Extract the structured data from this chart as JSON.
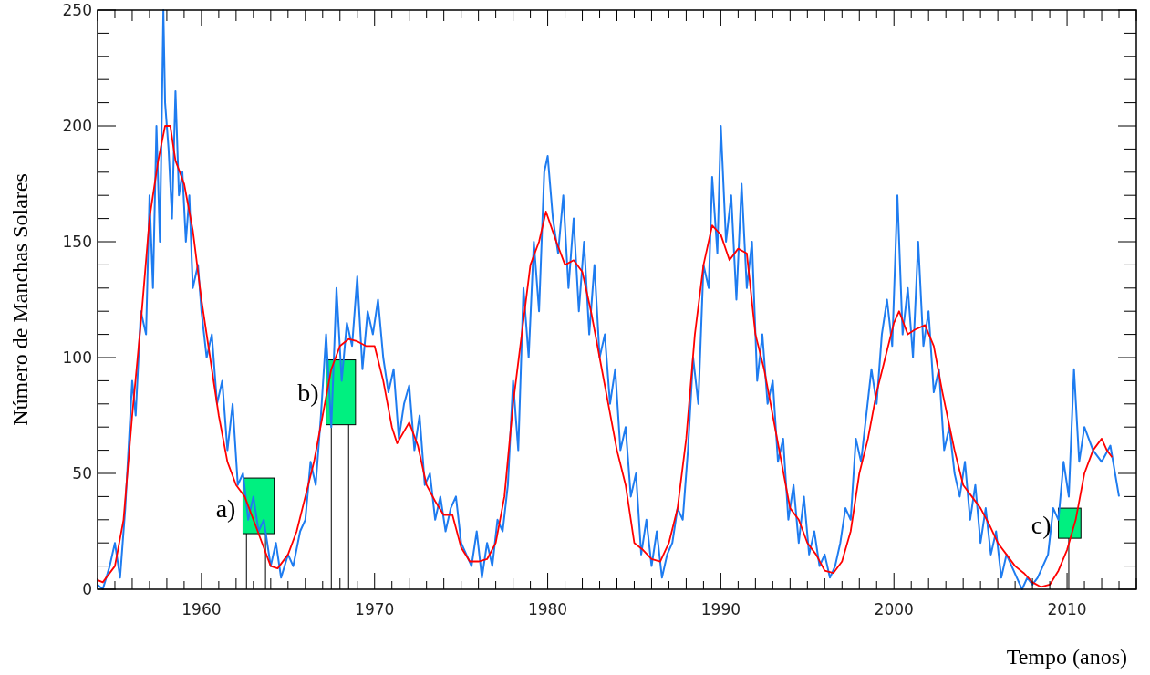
{
  "chart_data": {
    "type": "line",
    "xlabel": "Tempo (anos)",
    "ylabel": "Número de Manchas Solares",
    "xlim": [
      1954,
      2014
    ],
    "ylim": [
      0,
      250
    ],
    "xticks": [
      1960,
      1970,
      1980,
      1990,
      2000,
      2010
    ],
    "yticks": [
      0,
      50,
      100,
      150,
      200,
      250
    ],
    "grid": false,
    "marker": "none",
    "line_style": "solid",
    "series": [
      {
        "color": "#1e7cf0",
        "x": [
          1954,
          1954.3,
          1954.7,
          1955,
          1955.3,
          1955.6,
          1956,
          1956.2,
          1956.5,
          1956.8,
          1957,
          1957.2,
          1957.4,
          1957.6,
          1957.8,
          1957.9,
          1958.1,
          1958.3,
          1958.5,
          1958.7,
          1958.9,
          1959.1,
          1959.3,
          1959.5,
          1959.8,
          1960,
          1960.3,
          1960.6,
          1960.9,
          1961.2,
          1961.5,
          1961.8,
          1962.1,
          1962.4,
          1962.7,
          1963,
          1963.3,
          1963.6,
          1964,
          1964.3,
          1964.6,
          1965,
          1965.3,
          1965.7,
          1966,
          1966.3,
          1966.6,
          1966.9,
          1967.2,
          1967.5,
          1967.8,
          1968.1,
          1968.4,
          1968.7,
          1969,
          1969.3,
          1969.6,
          1969.9,
          1970.2,
          1970.5,
          1970.8,
          1971.1,
          1971.4,
          1971.7,
          1972,
          1972.3,
          1972.6,
          1972.9,
          1973.2,
          1973.5,
          1973.8,
          1974.1,
          1974.4,
          1974.7,
          1975,
          1975.3,
          1975.6,
          1975.9,
          1976.2,
          1976.5,
          1976.8,
          1977.1,
          1977.4,
          1977.7,
          1978,
          1978.3,
          1978.6,
          1978.9,
          1979.2,
          1979.5,
          1979.8,
          1980,
          1980.3,
          1980.6,
          1980.9,
          1981.2,
          1981.5,
          1981.8,
          1982.1,
          1982.4,
          1982.7,
          1983,
          1983.3,
          1983.6,
          1983.9,
          1984.2,
          1984.5,
          1984.8,
          1985.1,
          1985.4,
          1985.7,
          1986,
          1986.3,
          1986.6,
          1986.9,
          1987.2,
          1987.5,
          1987.8,
          1988.1,
          1988.4,
          1988.7,
          1989,
          1989.3,
          1989.5,
          1989.8,
          1990,
          1990.3,
          1990.6,
          1990.9,
          1991.2,
          1991.5,
          1991.8,
          1992.1,
          1992.4,
          1992.7,
          1993,
          1993.3,
          1993.6,
          1993.9,
          1994.2,
          1994.5,
          1994.8,
          1995.1,
          1995.4,
          1995.7,
          1996,
          1996.3,
          1996.6,
          1996.9,
          1997.2,
          1997.5,
          1997.8,
          1998.1,
          1998.4,
          1998.7,
          1999,
          1999.3,
          1999.6,
          1999.9,
          2000.2,
          2000.5,
          2000.8,
          2001.1,
          2001.4,
          2001.7,
          2002,
          2002.3,
          2002.6,
          2002.9,
          2003.2,
          2003.5,
          2003.8,
          2004.1,
          2004.4,
          2004.7,
          2005,
          2005.3,
          2005.6,
          2005.9,
          2006.2,
          2006.5,
          2006.8,
          2007.1,
          2007.4,
          2007.7,
          2008,
          2008.3,
          2008.6,
          2008.9,
          2009.2,
          2009.5,
          2009.8,
          2010.1,
          2010.4,
          2010.7,
          2011,
          2011.5,
          2012,
          2012.5,
          2013
        ],
        "values": [
          2,
          0,
          10,
          20,
          5,
          35,
          90,
          75,
          120,
          110,
          170,
          130,
          200,
          150,
          250,
          210,
          190,
          160,
          215,
          170,
          180,
          150,
          170,
          130,
          140,
          120,
          100,
          110,
          80,
          90,
          60,
          80,
          45,
          50,
          30,
          40,
          25,
          30,
          10,
          20,
          5,
          15,
          10,
          25,
          30,
          55,
          45,
          75,
          110,
          70,
          130,
          90,
          115,
          105,
          135,
          95,
          120,
          110,
          125,
          100,
          85,
          95,
          65,
          80,
          88,
          60,
          75,
          45,
          50,
          30,
          40,
          25,
          35,
          40,
          20,
          15,
          10,
          25,
          5,
          20,
          10,
          30,
          25,
          45,
          90,
          60,
          130,
          100,
          150,
          120,
          180,
          187,
          160,
          145,
          170,
          130,
          160,
          120,
          150,
          110,
          140,
          100,
          110,
          80,
          95,
          60,
          70,
          40,
          50,
          15,
          30,
          10,
          25,
          5,
          15,
          20,
          35,
          30,
          60,
          100,
          80,
          140,
          130,
          178,
          145,
          200,
          150,
          170,
          125,
          175,
          130,
          150,
          90,
          110,
          80,
          90,
          55,
          65,
          30,
          45,
          20,
          40,
          15,
          25,
          10,
          15,
          5,
          10,
          20,
          35,
          30,
          65,
          55,
          75,
          95,
          80,
          110,
          125,
          105,
          170,
          110,
          130,
          100,
          150,
          105,
          120,
          85,
          95,
          60,
          70,
          50,
          40,
          55,
          30,
          45,
          20,
          35,
          15,
          25,
          5,
          15,
          10,
          5,
          0,
          5,
          2,
          5,
          10,
          15,
          35,
          30,
          55,
          40,
          95,
          55,
          70,
          60,
          55,
          62,
          40
        ]
      },
      {
        "color": "#ff0000",
        "x": [
          1954,
          1954.3,
          1955,
          1955.5,
          1956,
          1956.5,
          1957,
          1957.5,
          1957.9,
          1958.2,
          1958.5,
          1959,
          1959.5,
          1960,
          1960.5,
          1961,
          1961.5,
          1962,
          1962.5,
          1963,
          1963.5,
          1964,
          1964.4,
          1965,
          1965.5,
          1966,
          1966.5,
          1967,
          1967.5,
          1968,
          1968.5,
          1969,
          1969.5,
          1970,
          1970.5,
          1971,
          1971.3,
          1972,
          1972.5,
          1973,
          1973.5,
          1974,
          1974.5,
          1975,
          1975.5,
          1976,
          1976.5,
          1977,
          1977.5,
          1978,
          1978.5,
          1979,
          1979.5,
          1979.9,
          1980.5,
          1981,
          1981.5,
          1982,
          1982.5,
          1983,
          1983.5,
          1984,
          1984.5,
          1985,
          1985.5,
          1986,
          1986.5,
          1987,
          1987.5,
          1988,
          1988.5,
          1989,
          1989.5,
          1990,
          1990.5,
          1991,
          1991.5,
          1992,
          1992.5,
          1993,
          1993.5,
          1994,
          1994.5,
          1995,
          1995.5,
          1996,
          1996.5,
          1997,
          1997.5,
          1998,
          1998.5,
          1999,
          1999.5,
          2000,
          2000.3,
          2000.8,
          2001.2,
          2001.8,
          2002.3,
          2002.8,
          2003.5,
          2004,
          2004.5,
          2005,
          2005.5,
          2006,
          2006.5,
          2007,
          2007.5,
          2008,
          2008.5,
          2009,
          2009.5,
          2010,
          2010.5,
          2011,
          2011.5,
          2012,
          2012.3,
          2012.6
        ],
        "values": [
          4,
          3,
          10,
          30,
          75,
          115,
          160,
          185,
          200,
          200,
          185,
          175,
          155,
          125,
          100,
          75,
          55,
          45,
          40,
          30,
          20,
          10,
          9,
          15,
          25,
          40,
          55,
          75,
          95,
          105,
          108,
          107,
          105,
          105,
          90,
          70,
          63,
          72,
          62,
          45,
          38,
          32,
          32,
          18,
          12,
          12,
          13,
          20,
          40,
          80,
          110,
          140,
          150,
          163,
          150,
          140,
          142,
          137,
          120,
          100,
          80,
          60,
          45,
          20,
          17,
          13,
          12,
          20,
          35,
          65,
          110,
          140,
          157,
          153,
          142,
          147,
          145,
          110,
          95,
          75,
          55,
          35,
          30,
          20,
          15,
          8,
          7,
          12,
          25,
          50,
          65,
          85,
          100,
          115,
          120,
          110,
          112,
          114,
          105,
          85,
          60,
          45,
          40,
          35,
          28,
          20,
          15,
          10,
          7,
          3,
          1,
          2,
          8,
          17,
          30,
          50,
          60,
          65,
          60,
          57
        ]
      }
    ],
    "annotations": [
      {
        "text": "a)",
        "x": 1962.4,
        "y": 35
      },
      {
        "text": "b)",
        "x": 1967.2,
        "y": 85
      },
      {
        "text": "c)",
        "x": 2009.5,
        "y": 28
      }
    ]
  }
}
